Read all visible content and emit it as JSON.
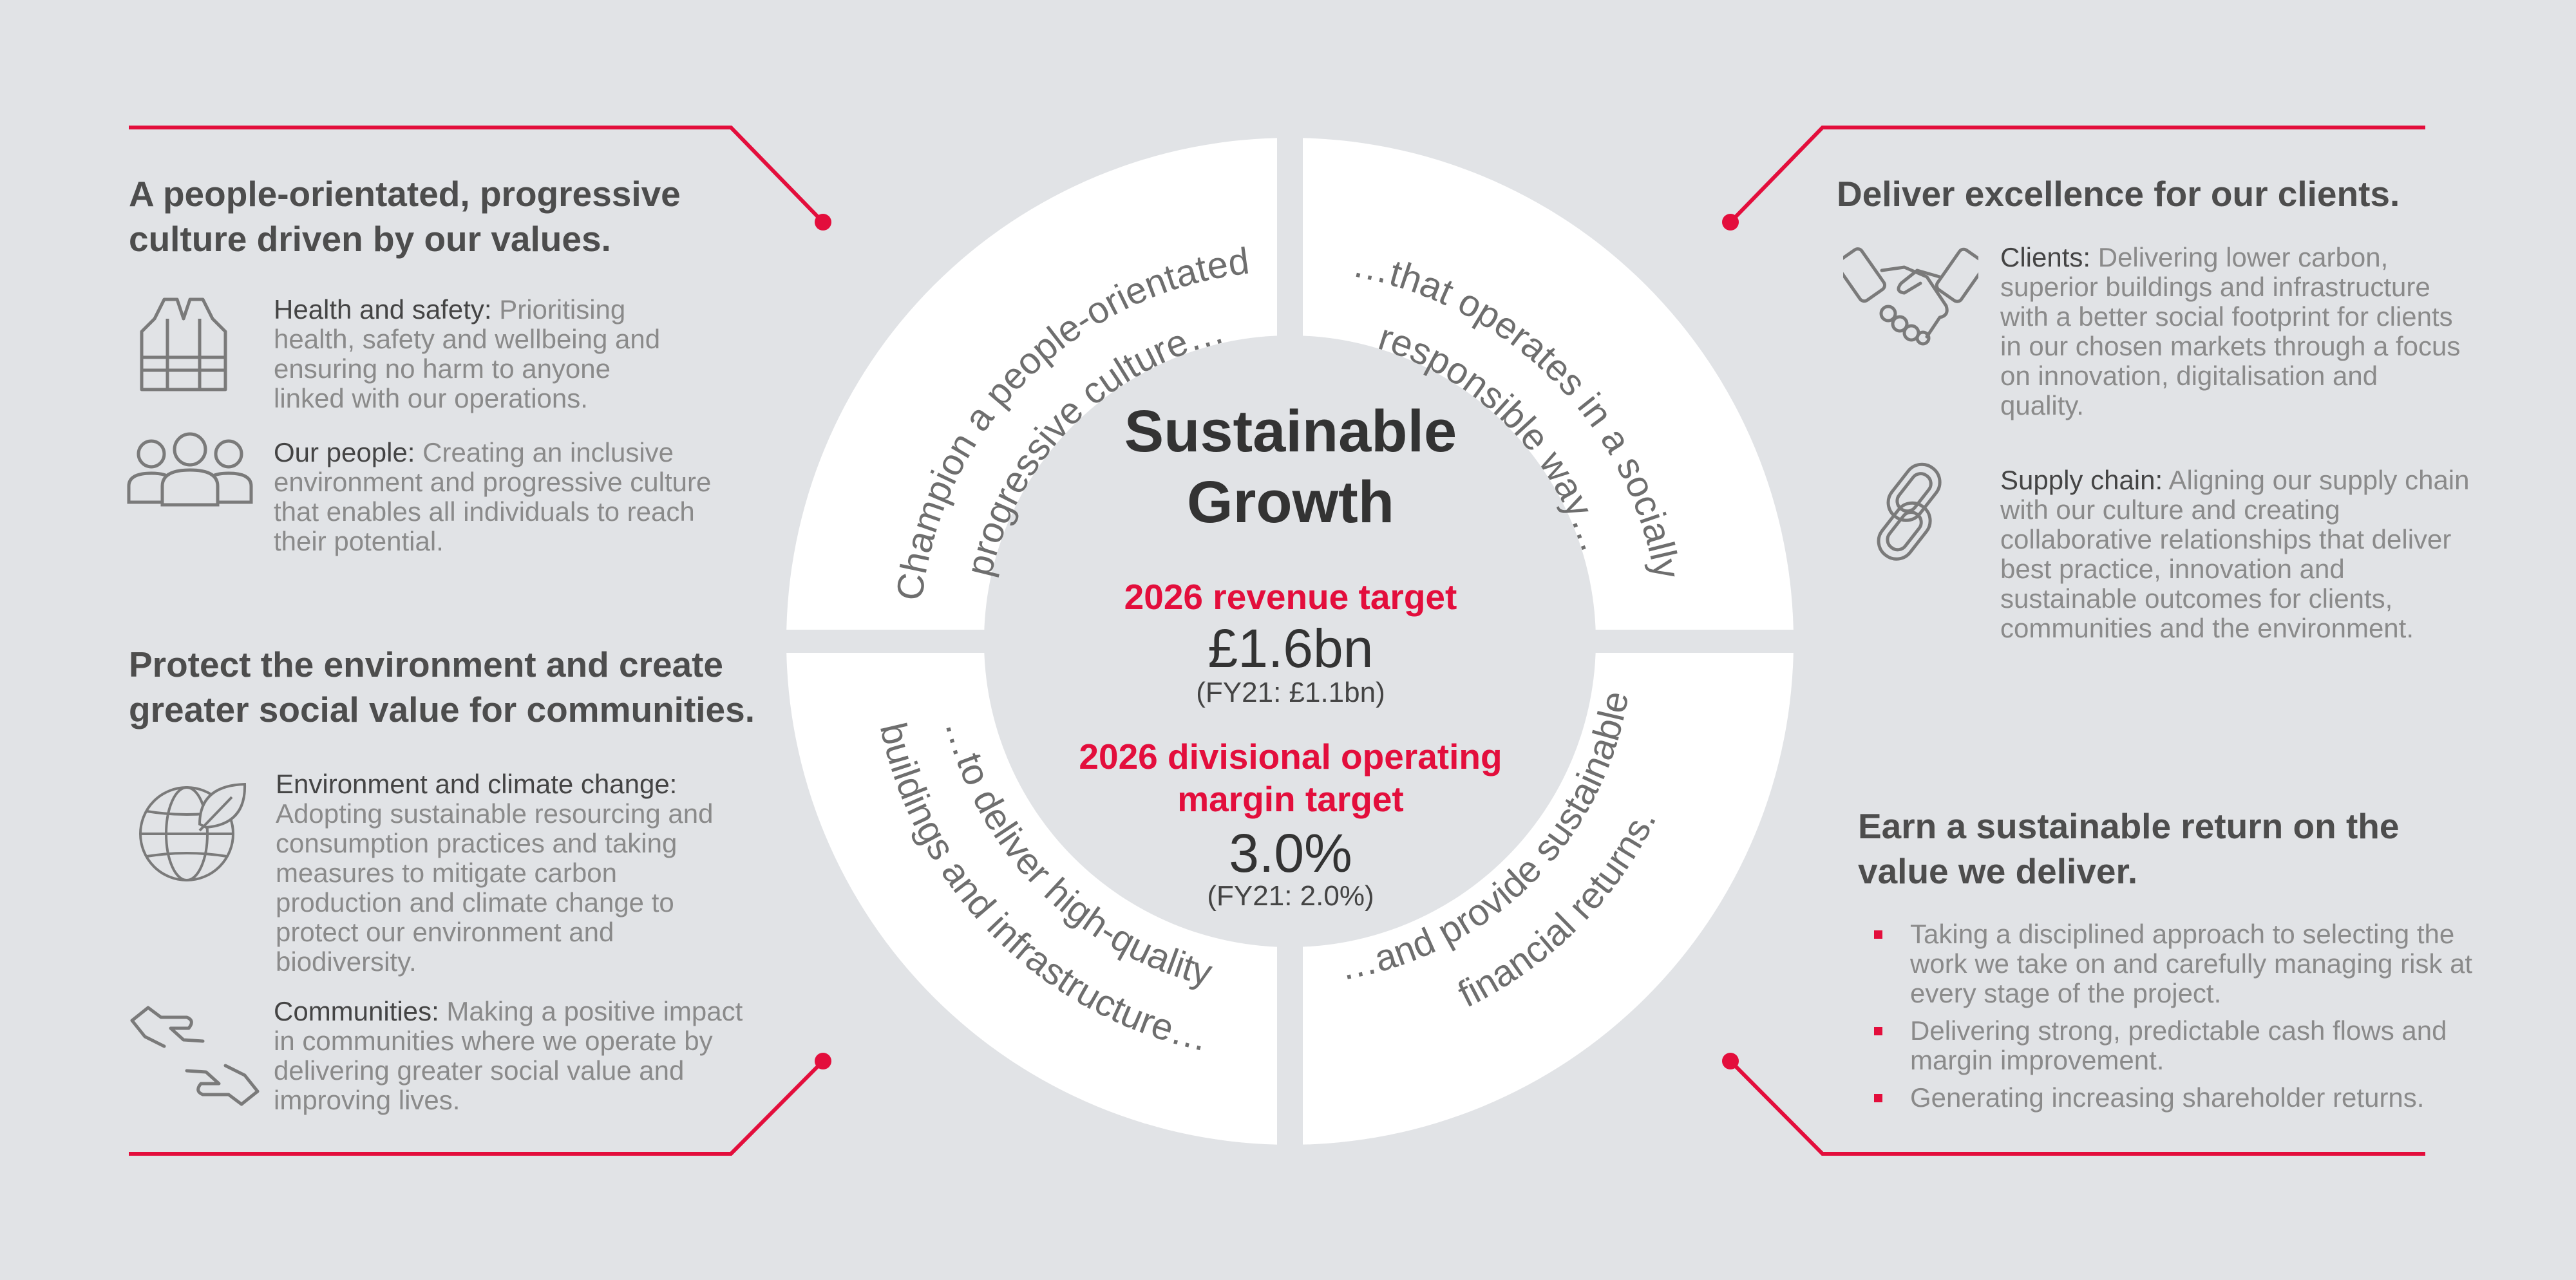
{
  "colors": {
    "accent": "#e30e3c",
    "background": "#e1e3e6",
    "ring": "#ffffff",
    "text": "#4d4d4d"
  },
  "center": {
    "title_line1": "Sustainable",
    "title_line2": "Growth",
    "revenue_label": "2026 revenue target",
    "revenue_value": "£1.6bn",
    "revenue_prior": "(FY21: £1.1bn)",
    "margin_label_line1": "2026 divisional operating",
    "margin_label_line2": "margin target",
    "margin_value": "3.0%",
    "margin_prior": "(FY21: 2.0%)"
  },
  "ring": {
    "top_left": {
      "line1": "Champion a people-orientated",
      "line2": "progressive culture…"
    },
    "top_right": {
      "line1": "…that operates in a socially",
      "line2": "responsible way…"
    },
    "bottom_left": {
      "line1": "…to deliver high-quality",
      "line2": "buildings and infrastructure…"
    },
    "bottom_right": {
      "line1": "…and provide sustainable",
      "line2": "financial returns."
    }
  },
  "top_left": {
    "heading_line1": "A people-orientated, progressive",
    "heading_line2": "culture driven by our values.",
    "items": [
      {
        "icon": "safety-vest-icon",
        "label": "Health and safety:",
        "text": " Prioritising health, safety and wellbeing and ensuring no harm to anyone linked with our operations."
      },
      {
        "icon": "people-icon",
        "label": "Our people:",
        "text": " Creating an inclusive environment and progressive culture that enables all individuals to reach their potential."
      }
    ]
  },
  "bottom_left": {
    "heading_line1": "Protect the environment and create",
    "heading_line2": "greater social value for communities.",
    "items": [
      {
        "icon": "globe-leaf-icon",
        "label": "Environment and climate change:",
        "text": " Adopting sustainable resourcing and consumption practices and taking measures to mitigate carbon production and climate change to protect our environment and biodiversity."
      },
      {
        "icon": "helping-hands-icon",
        "label": "Communities:",
        "text": " Making a positive impact in communities where we operate by delivering greater social value and improving lives."
      }
    ]
  },
  "top_right": {
    "heading": "Deliver excellence for our clients.",
    "items": [
      {
        "icon": "handshake-icon",
        "label": "Clients:",
        "text": " Delivering lower carbon, superior buildings and infrastructure with a better social footprint for clients in our chosen markets through a focus on innovation, digitalisation and quality."
      },
      {
        "icon": "chain-link-icon",
        "label": "Supply chain:",
        "text": " Aligning our supply chain with our culture and creating collaborative relationships that deliver best practice, innovation and sustainable outcomes for clients, communities and the environment."
      }
    ]
  },
  "bottom_right": {
    "heading_line1": "Earn a sustainable return on the",
    "heading_line2": "value we deliver.",
    "bullets": [
      "Taking a disciplined approach to selecting the work we take on and carefully managing risk at every stage of the project.",
      "Delivering strong, predictable cash flows and margin improvement.",
      "Generating increasing shareholder returns."
    ]
  }
}
